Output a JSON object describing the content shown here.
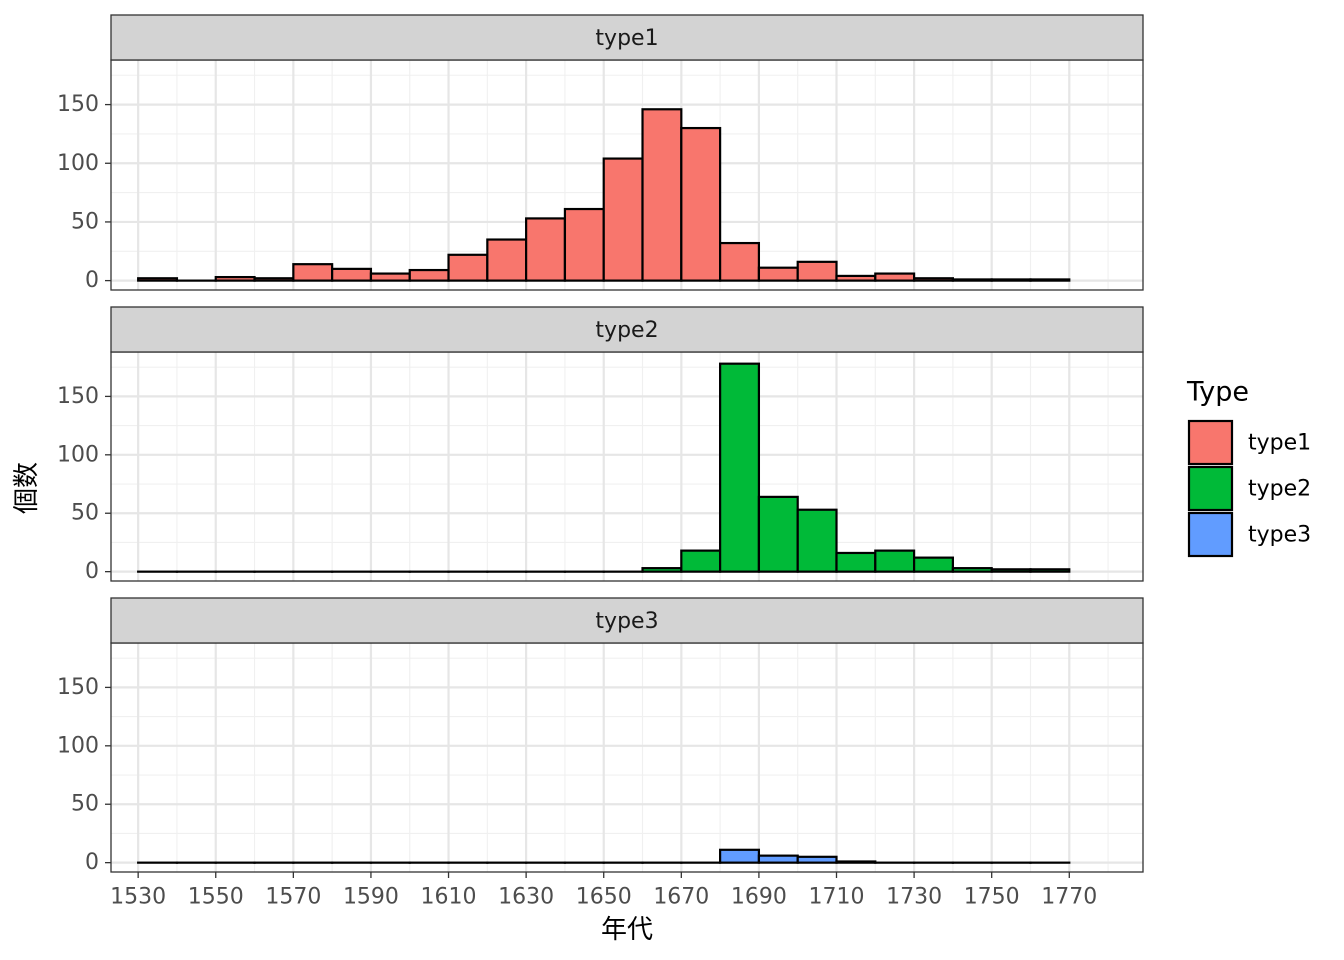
{
  "chart_data": {
    "type": "bar",
    "xlabel": "年代",
    "ylabel": "個数",
    "xlim": [
      1523,
      1789
    ],
    "ylim": [
      -8,
      188
    ],
    "x_ticks": [
      1530,
      1550,
      1570,
      1590,
      1610,
      1630,
      1650,
      1670,
      1690,
      1710,
      1730,
      1750,
      1770
    ],
    "y_ticks": [
      0,
      50,
      100,
      150
    ],
    "bin_width": 10,
    "bin_starts": [
      1530,
      1540,
      1550,
      1560,
      1570,
      1580,
      1590,
      1600,
      1610,
      1620,
      1630,
      1640,
      1650,
      1660,
      1670,
      1680,
      1690,
      1700,
      1710,
      1720,
      1730,
      1740,
      1750,
      1760
    ],
    "grid": true,
    "legend": {
      "title": "Type",
      "position": "right",
      "entries": [
        {
          "label": "type1",
          "color": "#F8766D"
        },
        {
          "label": "type2",
          "color": "#00BA38"
        },
        {
          "label": "type3",
          "color": "#619CFF"
        }
      ]
    },
    "series": [
      {
        "name": "type1",
        "color": "#F8766D",
        "values": [
          2,
          0,
          3,
          2,
          14,
          10,
          6,
          9,
          22,
          35,
          53,
          61,
          104,
          146,
          130,
          32,
          11,
          16,
          4,
          6,
          2,
          1,
          1,
          1
        ]
      },
      {
        "name": "type2",
        "color": "#00BA38",
        "values": [
          0,
          0,
          0,
          0,
          0,
          0,
          0,
          0,
          0,
          0,
          0,
          0,
          0,
          3,
          18,
          178,
          64,
          53,
          16,
          18,
          12,
          3,
          2,
          2
        ]
      },
      {
        "name": "type3",
        "color": "#619CFF",
        "values": [
          0,
          0,
          0,
          0,
          0,
          0,
          0,
          0,
          0,
          0,
          0,
          0,
          0,
          0,
          0,
          11,
          6,
          5,
          1,
          0,
          0,
          0,
          0,
          0
        ]
      }
    ]
  }
}
